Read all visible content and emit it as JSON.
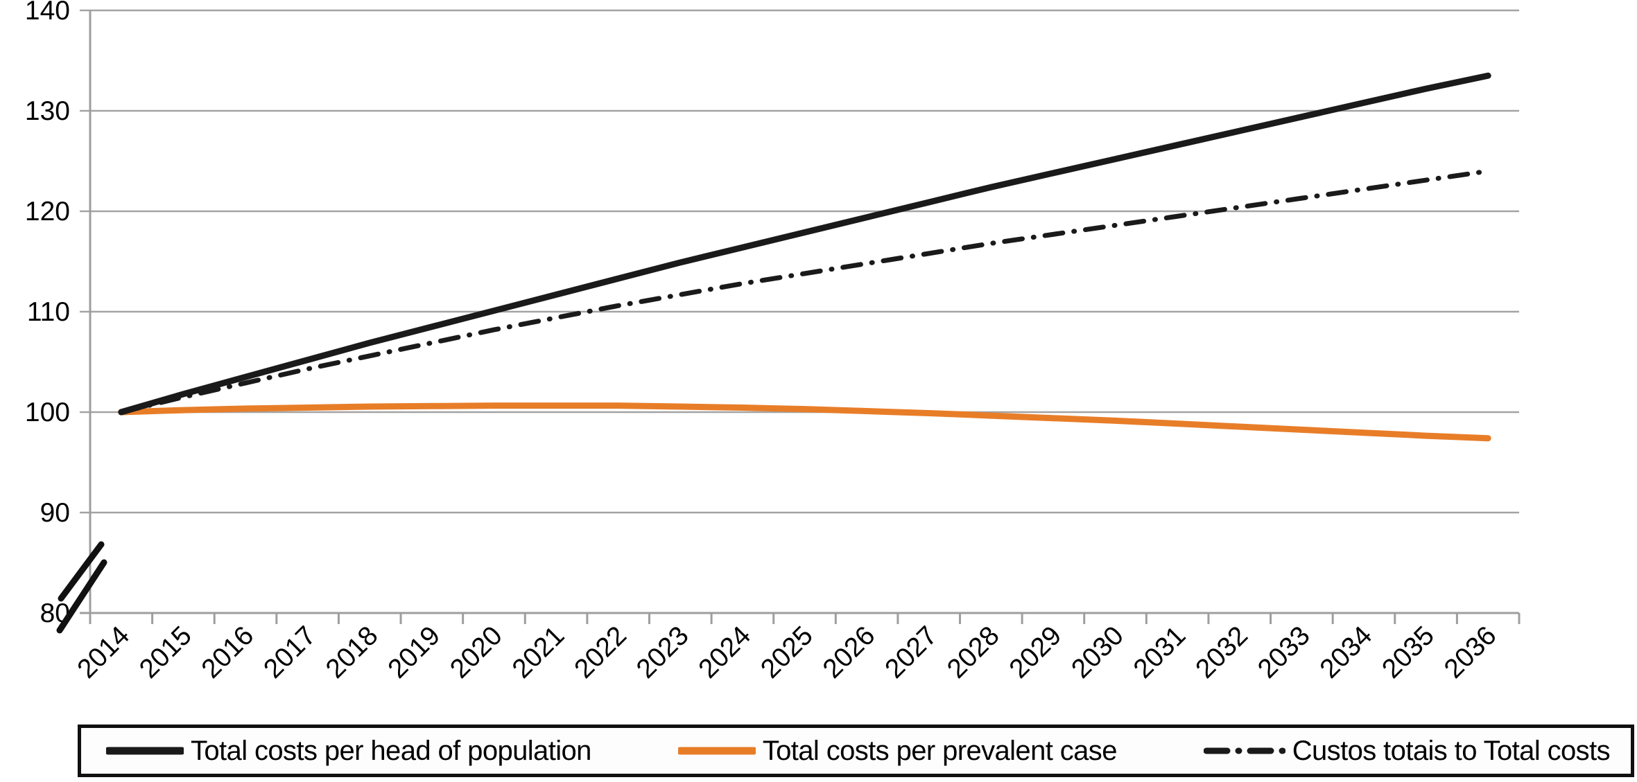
{
  "chart_data": {
    "type": "line",
    "title": "",
    "xlabel": "",
    "ylabel": "",
    "ylim": [
      80,
      140
    ],
    "axis_break_on_y": true,
    "grid": "horizontal",
    "legend_position": "bottom",
    "yticks": [
      "140",
      "130",
      "120",
      "110",
      "100",
      "90",
      "80"
    ],
    "categories": [
      "2014",
      "2015",
      "2016",
      "2017",
      "2018",
      "2019",
      "2020",
      "2021",
      "2022",
      "2023",
      "2024",
      "2025",
      "2026",
      "2027",
      "2028",
      "2029",
      "2030",
      "2031",
      "2032",
      "2033",
      "2034",
      "2035",
      "2036"
    ],
    "series": [
      {
        "name": "Total costs per head of population",
        "color": "#1a1a1a",
        "style": "solid",
        "values": [
          100.0,
          101.8,
          103.5,
          105.2,
          106.9,
          108.5,
          110.1,
          111.7,
          113.3,
          114.9,
          116.4,
          117.9,
          119.4,
          120.9,
          122.4,
          123.8,
          125.2,
          126.6,
          128.0,
          129.4,
          130.8,
          132.2,
          133.5
        ]
      },
      {
        "name": "Total costs per prevalent case",
        "color": "#e87d28",
        "style": "solid",
        "values": [
          100.0,
          100.2,
          100.35,
          100.45,
          100.55,
          100.6,
          100.65,
          100.65,
          100.65,
          100.55,
          100.45,
          100.3,
          100.1,
          99.9,
          99.65,
          99.4,
          99.15,
          98.85,
          98.55,
          98.25,
          97.95,
          97.65,
          97.4
        ]
      },
      {
        "name": "Custos totais to Total costs",
        "color": "#1a1a1a",
        "style": "dashdot",
        "values": [
          100.0,
          101.5,
          102.9,
          104.3,
          105.6,
          106.9,
          108.2,
          109.4,
          110.6,
          111.7,
          112.8,
          113.8,
          114.8,
          115.8,
          116.8,
          117.7,
          118.6,
          119.5,
          120.4,
          121.3,
          122.2,
          123.1,
          124.0
        ]
      }
    ],
    "colors": {
      "gridline": "#a3a3a3",
      "axis": "#9e9e9e",
      "tick_label": "#000000",
      "legend_border": "#101010"
    }
  }
}
